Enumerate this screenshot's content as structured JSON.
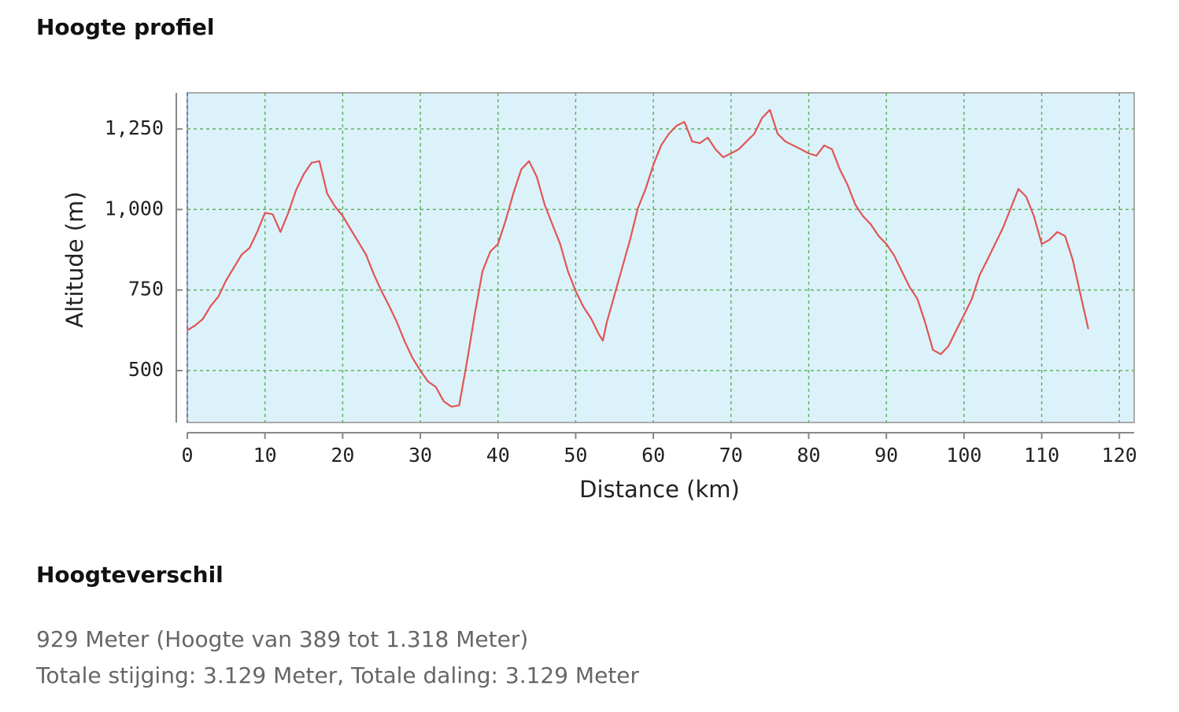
{
  "header": {
    "title": "Hoogte profiel"
  },
  "chart_data": {
    "type": "line",
    "xlabel": "Distance (km)",
    "ylabel": "Altitude (m)",
    "x": [
      0,
      1,
      2,
      3,
      4,
      5,
      6,
      7,
      8,
      9,
      10,
      11,
      12,
      13,
      14,
      15,
      16,
      17,
      18,
      19,
      20,
      21,
      22,
      23,
      24,
      25,
      26,
      27,
      28,
      29,
      30,
      31,
      32,
      33,
      34,
      35,
      36,
      37,
      38,
      39,
      40,
      41,
      42,
      43,
      44,
      45,
      46,
      47,
      48,
      49,
      50,
      51,
      52,
      53,
      53.5,
      54,
      55,
      56,
      57,
      58,
      59,
      60,
      61,
      62,
      63,
      64,
      65,
      66,
      67,
      68,
      69,
      70,
      71,
      72,
      73,
      74,
      75,
      76,
      77,
      78,
      79,
      80,
      81,
      82,
      83,
      84,
      85,
      86,
      87,
      88,
      89,
      90,
      91,
      92,
      93,
      94,
      95,
      96,
      97,
      98,
      99,
      100,
      101,
      102,
      103,
      104,
      105,
      106,
      107,
      108,
      109,
      110,
      111,
      112,
      113,
      114,
      115,
      116
    ],
    "values": [
      625,
      640,
      660,
      700,
      730,
      780,
      820,
      860,
      880,
      930,
      990,
      985,
      930,
      990,
      1060,
      1110,
      1145,
      1150,
      1050,
      1010,
      980,
      940,
      900,
      860,
      800,
      747,
      700,
      649,
      590,
      539,
      500,
      466,
      449,
      405,
      388,
      392,
      527,
      673,
      808,
      869,
      893,
      967,
      1052,
      1125,
      1150,
      1101,
      1015,
      954,
      893,
      808,
      747,
      698,
      661,
      612,
      593,
      649,
      735,
      820,
      906,
      1003,
      1064,
      1138,
      1199,
      1235,
      1260,
      1272,
      1211,
      1206,
      1223,
      1187,
      1162,
      1174,
      1187,
      1211,
      1235,
      1284,
      1309,
      1235,
      1211,
      1199,
      1187,
      1174,
      1167,
      1199,
      1187,
      1125,
      1077,
      1015,
      979,
      954,
      918,
      893,
      857,
      808,
      759,
      722,
      649,
      564,
      551,
      576,
      625,
      673,
      722,
      796,
      844,
      893,
      942,
      1003,
      1064,
      1040,
      979,
      893,
      906,
      930,
      918,
      844,
      735,
      629
    ],
    "color": "#e05555",
    "xlim": [
      0,
      121.9
    ],
    "xticks": [
      0,
      10,
      20,
      30,
      40,
      50,
      60,
      70,
      80,
      90,
      100,
      110,
      120
    ],
    "ylim": [
      339,
      1362
    ],
    "yticks": [
      500,
      750,
      {
        "value": 1000,
        "label": "1,000"
      },
      {
        "value": 1250,
        "label": "1,250"
      }
    ],
    "grid": true
  },
  "section": {
    "title": "Hoogteverschil",
    "lines": [
      "929 Meter (Hoogte van 389 tot 1.318 Meter)",
      "Totale stijging: 3.129 Meter, Totale daling: 3.129 Meter"
    ]
  }
}
